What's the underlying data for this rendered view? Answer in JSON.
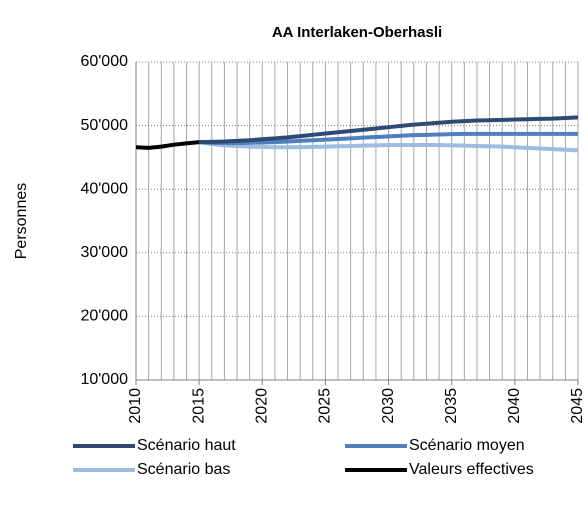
{
  "chart_data": {
    "type": "line",
    "title": "AA Interlaken-Oberhasli",
    "y_label": "Personnes",
    "x": [
      2010,
      2011,
      2012,
      2013,
      2014,
      2015,
      2016,
      2017,
      2018,
      2019,
      2020,
      2021,
      2022,
      2023,
      2024,
      2025,
      2026,
      2027,
      2028,
      2029,
      2030,
      2031,
      2032,
      2033,
      2034,
      2035,
      2036,
      2037,
      2038,
      2039,
      2040,
      2041,
      2042,
      2043,
      2044,
      2045
    ],
    "xlim": [
      2010,
      2045
    ],
    "xticks": [
      2010,
      2015,
      2020,
      2025,
      2030,
      2035,
      2040,
      2045
    ],
    "ylim": [
      10000,
      60000
    ],
    "yticks": [
      {
        "value": 10000,
        "label": "10'000"
      },
      {
        "value": 20000,
        "label": "20'000"
      },
      {
        "value": 30000,
        "label": "30'000"
      },
      {
        "value": 40000,
        "label": "40'000"
      },
      {
        "value": 50000,
        "label": "50'000"
      },
      {
        "value": 60000,
        "label": "60'000"
      }
    ],
    "grid": true,
    "series": [
      {
        "name": "Scénario haut",
        "color": "#2e4a72",
        "values": [
          null,
          null,
          null,
          null,
          null,
          47400,
          47450,
          47500,
          47600,
          47700,
          47850,
          48000,
          48150,
          48350,
          48550,
          48750,
          48950,
          49150,
          49350,
          49550,
          49750,
          49950,
          50150,
          50300,
          50450,
          50600,
          50700,
          50800,
          50850,
          50900,
          50950,
          51000,
          51050,
          51100,
          51200,
          51300
        ]
      },
      {
        "name": "Scénario moyen",
        "color": "#4f7fbf",
        "values": [
          null,
          null,
          null,
          null,
          null,
          47400,
          47300,
          47250,
          47250,
          47300,
          47350,
          47400,
          47500,
          47600,
          47700,
          47800,
          47900,
          48000,
          48100,
          48200,
          48300,
          48400,
          48500,
          48550,
          48600,
          48650,
          48700,
          48700,
          48700,
          48700,
          48700,
          48700,
          48700,
          48700,
          48700,
          48700
        ]
      },
      {
        "name": "Scénario bas",
        "color": "#9dbce0",
        "values": [
          null,
          null,
          null,
          null,
          null,
          47400,
          47100,
          46900,
          46800,
          46700,
          46650,
          46600,
          46600,
          46600,
          46650,
          46700,
          46750,
          46800,
          46850,
          46900,
          46950,
          46950,
          46950,
          46950,
          46950,
          46900,
          46850,
          46800,
          46750,
          46700,
          46600,
          46500,
          46400,
          46300,
          46200,
          46100
        ]
      },
      {
        "name": "Valeurs effectives",
        "color": "#000000",
        "values": [
          46600,
          46500,
          46700,
          47000,
          47200,
          47400,
          null,
          null,
          null,
          null,
          null,
          null,
          null,
          null,
          null,
          null,
          null,
          null,
          null,
          null,
          null,
          null,
          null,
          null,
          null,
          null,
          null,
          null,
          null,
          null,
          null,
          null,
          null,
          null,
          null,
          null
        ]
      }
    ]
  }
}
